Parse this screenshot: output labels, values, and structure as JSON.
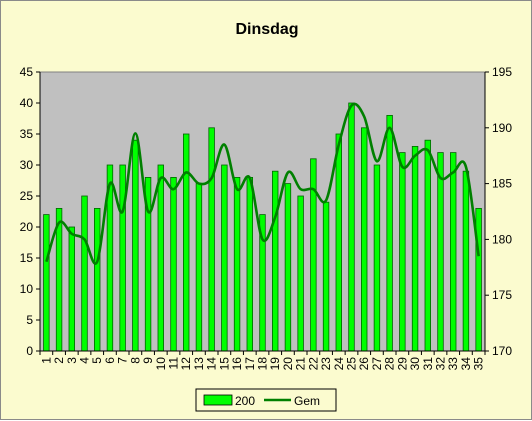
{
  "chart_data": {
    "type": "bar",
    "title": "Dinsdag",
    "categories": [
      "1",
      "2",
      "3",
      "4",
      "5",
      "6",
      "7",
      "8",
      "9",
      "10",
      "11",
      "12",
      "13",
      "14",
      "15",
      "16",
      "17",
      "18",
      "19",
      "20",
      "21",
      "22",
      "23",
      "24",
      "25",
      "26",
      "27",
      "28",
      "29",
      "30",
      "31",
      "32",
      "33",
      "34",
      "35"
    ],
    "series": [
      {
        "name": "200",
        "type": "bar",
        "axis": "left",
        "values": [
          22,
          23,
          20,
          25,
          23,
          30,
          30,
          34,
          28,
          30,
          28,
          35,
          27,
          36,
          30,
          28,
          28,
          22,
          29,
          27,
          25,
          31,
          24,
          35,
          40,
          36,
          30,
          38,
          32,
          33,
          34,
          32,
          32,
          29,
          23
        ]
      },
      {
        "name": "Gem",
        "type": "line",
        "axis": "right",
        "values": [
          178,
          181.5,
          180.5,
          180,
          178,
          185,
          182.5,
          189.5,
          182.5,
          185.5,
          184.5,
          186,
          185,
          185.5,
          188.5,
          184.5,
          185.5,
          180,
          182,
          186,
          184.5,
          184.5,
          183.5,
          188.5,
          192,
          191,
          187,
          190,
          186.5,
          187.5,
          188,
          185.5,
          186,
          186.5,
          178.5
        ]
      }
    ],
    "y_left": {
      "min": 0,
      "max": 45,
      "step": 5
    },
    "y_right": {
      "min": 170,
      "max": 195,
      "step": 5
    },
    "legend": {
      "position": "bottom",
      "entries": [
        "200",
        "Gem"
      ]
    },
    "colors": {
      "bar_fill": "#00ff00",
      "bar_stroke": "#006400",
      "line": "#008000",
      "plot_bg": "#c0c0c0",
      "chart_bg": "#fbfbcf"
    },
    "grid": false
  }
}
